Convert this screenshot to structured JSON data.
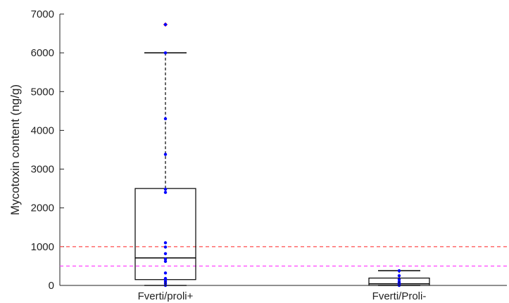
{
  "chart_data": {
    "type": "box",
    "title": "",
    "xlabel": "",
    "ylabel": "Mycotoxin content (ng/g)",
    "ylim": [
      0,
      7000
    ],
    "yticks": [
      0,
      1000,
      2000,
      3000,
      4000,
      5000,
      6000,
      7000
    ],
    "yticklabels": [
      "0",
      "1000",
      "2000",
      "3000",
      "4000",
      "5000",
      "6000",
      "7000"
    ],
    "grid": false,
    "categories": [
      "Fverti/proli+",
      "Fverti/Proli-"
    ],
    "boxes": [
      {
        "category": "Fverti/proli+",
        "whisker_low": 0,
        "q1": 150,
        "median": 710,
        "q3": 2500,
        "whisker_high": 6000,
        "outliers": [
          6730
        ],
        "points": [
          0,
          50,
          100,
          150,
          180,
          320,
          620,
          680,
          820,
          990,
          1100,
          2400,
          2480,
          3380,
          4300,
          6000,
          6730
        ]
      },
      {
        "category": "Fverti/Proli-",
        "whisker_low": 0,
        "q1": 0,
        "median": 40,
        "q3": 190,
        "whisker_high": 380,
        "outliers": [],
        "points": [
          0,
          20,
          40,
          60,
          90,
          150,
          250,
          380
        ]
      }
    ],
    "reference_lines": [
      {
        "y": 1000,
        "color": "#ff4d4d",
        "style": "dashed"
      },
      {
        "y": 500,
        "color": "#ff33ff",
        "style": "dashed"
      }
    ],
    "colors": {
      "box": "#000000",
      "points": "#0000ff",
      "outlier": "#ff0000"
    }
  }
}
